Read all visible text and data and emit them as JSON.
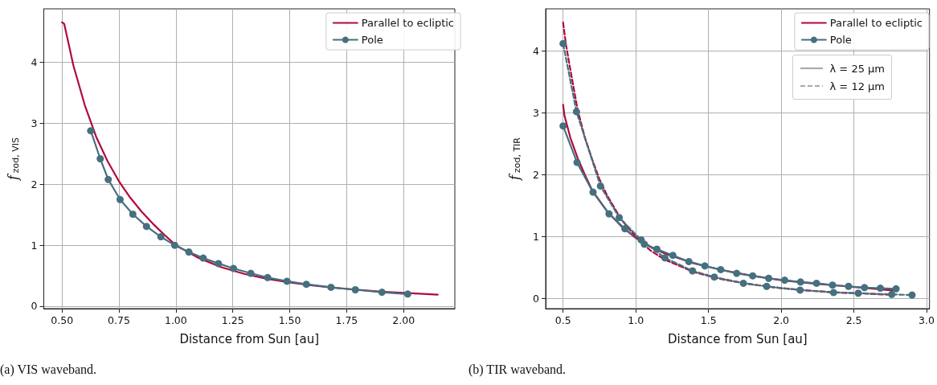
{
  "chart_data": [
    {
      "type": "line",
      "xlabel": "Distance from Sun [au]",
      "ylabel": "f$_{zod, VIS}$",
      "xlim": [
        0.42,
        2.225
      ],
      "ylim": [
        -0.04,
        4.88
      ],
      "xticks": [
        {
          "value": 0.5,
          "label": "0.50"
        },
        {
          "value": 0.75,
          "label": "0.75"
        },
        {
          "value": 1.0,
          "label": "1.00"
        },
        {
          "value": 1.25,
          "label": "1.25"
        },
        {
          "value": 1.5,
          "label": "1.50"
        },
        {
          "value": 1.75,
          "label": "1.75"
        },
        {
          "value": 2.0,
          "label": "2.00"
        }
      ],
      "yticks": [
        0,
        1,
        2,
        3,
        4
      ],
      "grid": true,
      "legend": "top right",
      "annotations": [
        "(a) VIS waveband."
      ],
      "series": [
        {
          "name": "Parallel to ecliptic",
          "color": "#b2083c",
          "marker": "none",
          "line_style": "solid",
          "x": [
            0.5,
            0.51,
            0.55,
            0.6,
            0.65,
            0.7,
            0.75,
            0.8,
            0.85,
            0.9,
            0.95,
            1.0,
            1.1,
            1.2,
            1.3,
            1.4,
            1.5,
            1.6,
            1.7,
            1.8,
            1.9,
            2.0,
            2.15
          ],
          "values": [
            4.66,
            4.63,
            3.95,
            3.3,
            2.78,
            2.38,
            2.05,
            1.78,
            1.55,
            1.35,
            1.17,
            1.0,
            0.79,
            0.64,
            0.53,
            0.45,
            0.39,
            0.34,
            0.3,
            0.27,
            0.24,
            0.22,
            0.19
          ]
        },
        {
          "name": "Pole",
          "color": "#45707f",
          "marker": "circle",
          "line_style": "solid",
          "x": [
            0.626,
            0.668,
            0.703,
            0.755,
            0.811,
            0.871,
            0.934,
            0.995,
            1.057,
            1.12,
            1.187,
            1.253,
            1.329,
            1.403,
            1.488,
            1.573,
            1.681,
            1.788,
            1.905,
            2.018
          ],
          "values": [
            2.88,
            2.42,
            2.08,
            1.75,
            1.51,
            1.31,
            1.14,
            1.0,
            0.89,
            0.79,
            0.7,
            0.62,
            0.54,
            0.47,
            0.41,
            0.36,
            0.31,
            0.27,
            0.23,
            0.2
          ]
        }
      ]
    },
    {
      "type": "line",
      "xlabel": "Distance from Sun [au]",
      "ylabel": "f$_{zod, TIR}$",
      "xlim": [
        0.38,
        3.02
      ],
      "ylim": [
        -0.16,
        4.68
      ],
      "xticks": [
        0.5,
        {
          "value": 1.0,
          "label": "1.0"
        },
        1.5,
        {
          "value": 2.0,
          "label": "2.0"
        },
        2.5,
        {
          "value": 3.0,
          "label": "3.0"
        }
      ],
      "yticks": [
        0,
        1,
        2,
        3,
        4
      ],
      "grid": true,
      "legend": "top right",
      "annotations": [
        "λ = 25 µm",
        "λ = 12 µm",
        "(b) TIR waveband."
      ],
      "series": [
        {
          "name": "Parallel to ecliptic",
          "color": "#b2083c",
          "marker": "none",
          "line_style": "solid",
          "x": [
            0.5,
            0.51,
            0.55,
            0.6,
            0.65,
            0.7,
            0.8,
            0.9,
            1.0,
            1.1,
            1.2,
            1.4,
            1.6,
            1.8,
            2.0,
            2.2,
            2.4,
            2.6,
            2.78
          ],
          "values": [
            3.13,
            2.95,
            2.6,
            2.27,
            2.0,
            1.75,
            1.42,
            1.17,
            0.98,
            0.84,
            0.73,
            0.57,
            0.46,
            0.37,
            0.3,
            0.25,
            0.21,
            0.17,
            0.13
          ]
        },
        {
          "name": "Pole",
          "color": "#45707f",
          "marker": "circle",
          "line_style": "solid",
          "x": [
            0.5,
            0.596,
            0.706,
            0.816,
            0.925,
            1.059,
            1.145,
            1.255,
            1.365,
            1.475,
            1.584,
            1.694,
            1.804,
            1.914,
            2.024,
            2.133,
            2.243,
            2.353,
            2.463,
            2.573,
            2.682,
            2.79
          ],
          "values": [
            2.79,
            2.2,
            1.72,
            1.37,
            1.13,
            0.88,
            0.8,
            0.7,
            0.6,
            0.53,
            0.47,
            0.41,
            0.37,
            0.33,
            0.3,
            0.27,
            0.25,
            0.22,
            0.2,
            0.18,
            0.17,
            0.16
          ]
        },
        {
          "color": "#b2083c",
          "marker": "none",
          "line_style": "dashed",
          "x": [
            0.5,
            0.52,
            0.55,
            0.6,
            0.65,
            0.7,
            0.75,
            0.8,
            0.9,
            1.0,
            1.1,
            1.2,
            1.4,
            1.6,
            1.8,
            2.0,
            2.2,
            2.4,
            2.6,
            2.78
          ],
          "values": [
            4.46,
            4.1,
            3.7,
            3.05,
            2.6,
            2.25,
            1.93,
            1.68,
            1.28,
            1.0,
            0.78,
            0.63,
            0.43,
            0.31,
            0.23,
            0.17,
            0.13,
            0.1,
            0.08,
            0.06
          ]
        },
        {
          "color": "#45707f",
          "marker": "circle",
          "line_style": "dashed",
          "x": [
            0.5,
            0.592,
            0.757,
            0.886,
            1.037,
            1.2,
            1.39,
            1.54,
            1.74,
            1.9,
            2.13,
            2.36,
            2.53,
            2.76,
            2.9
          ],
          "values": [
            4.12,
            3.02,
            1.82,
            1.31,
            0.95,
            0.66,
            0.45,
            0.35,
            0.25,
            0.2,
            0.14,
            0.1,
            0.09,
            0.07,
            0.06
          ]
        }
      ]
    }
  ]
}
